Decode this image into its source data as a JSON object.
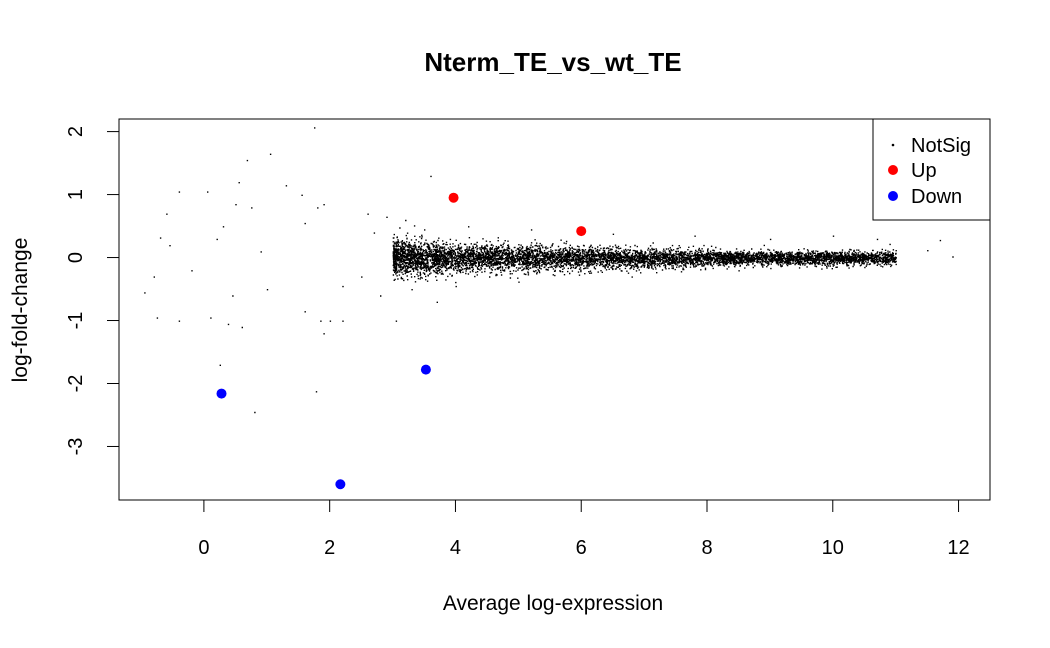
{
  "chart_data": {
    "type": "scatter",
    "title": "Nterm_TE_vs_wt_TE",
    "xlabel": "Average log-expression",
    "ylabel": "log-fold-change",
    "xlim": [
      -1.35,
      12.5
    ],
    "ylim": [
      -3.85,
      2.2
    ],
    "x_ticks": [
      0,
      2,
      4,
      6,
      8,
      10,
      12
    ],
    "y_ticks": [
      2,
      1,
      0,
      -1,
      -2,
      -3
    ],
    "grid": false,
    "legend": {
      "position": "top-right",
      "entries": [
        {
          "label": "NotSig",
          "color": "#000000",
          "marker": "dot"
        },
        {
          "label": "Up",
          "color": "#ff0000",
          "marker": "circle"
        },
        {
          "label": "Down",
          "color": "#0000ff",
          "marker": "circle"
        }
      ]
    },
    "series": [
      {
        "name": "Up",
        "color": "#ff0000",
        "points": [
          [
            3.97,
            0.95
          ],
          [
            6.0,
            0.42
          ]
        ]
      },
      {
        "name": "Down",
        "color": "#0000ff",
        "points": [
          [
            0.28,
            -2.16
          ],
          [
            2.17,
            -3.6
          ],
          [
            3.53,
            -1.78
          ]
        ]
      },
      {
        "name": "NotSig",
        "color": "#000000",
        "distribution_note": "dense cloud 3.0-11.0 near 0",
        "points": [
          [
            1.75,
            2.07
          ],
          [
            1.05,
            1.65
          ],
          [
            0.68,
            1.55
          ],
          [
            0.55,
            1.2
          ],
          [
            1.3,
            1.15
          ],
          [
            0.05,
            1.05
          ],
          [
            -0.4,
            1.05
          ],
          [
            3.6,
            1.3
          ],
          [
            1.55,
            1.0
          ],
          [
            1.9,
            0.85
          ],
          [
            -0.6,
            0.7
          ],
          [
            0.5,
            0.85
          ],
          [
            0.75,
            0.8
          ],
          [
            1.8,
            0.8
          ],
          [
            2.6,
            0.7
          ],
          [
            2.9,
            0.65
          ],
          [
            -0.7,
            0.32
          ],
          [
            -0.55,
            0.2
          ],
          [
            0.2,
            0.3
          ],
          [
            1.6,
            0.55
          ],
          [
            -0.95,
            -0.55
          ],
          [
            -0.8,
            -0.3
          ],
          [
            0.45,
            -0.6
          ],
          [
            1.0,
            -0.5
          ],
          [
            2.2,
            -0.45
          ],
          [
            2.8,
            -0.6
          ],
          [
            -0.75,
            -0.95
          ],
          [
            -0.4,
            -1.0
          ],
          [
            0.1,
            -0.95
          ],
          [
            0.38,
            -1.05
          ],
          [
            0.6,
            -1.1
          ],
          [
            1.6,
            -0.85
          ],
          [
            1.85,
            -1.0
          ],
          [
            2.0,
            -1.0
          ],
          [
            2.2,
            -1.0
          ],
          [
            3.05,
            -1.0
          ],
          [
            0.25,
            -1.7
          ],
          [
            1.78,
            -2.12
          ],
          [
            0.8,
            -2.45
          ],
          [
            1.9,
            -1.2
          ],
          [
            10.0,
            0.35
          ],
          [
            10.7,
            0.3
          ],
          [
            11.5,
            0.12
          ],
          [
            11.9,
            0.02
          ],
          [
            11.7,
            0.28
          ],
          [
            10.5,
            0.1
          ],
          [
            10.9,
            0.22
          ],
          [
            3.2,
            0.6
          ],
          [
            3.5,
            0.45
          ],
          [
            4.2,
            0.5
          ],
          [
            5.2,
            0.45
          ],
          [
            6.5,
            0.38
          ],
          [
            7.8,
            0.35
          ],
          [
            9.0,
            0.3
          ],
          [
            3.3,
            -0.5
          ],
          [
            4.0,
            -0.45
          ],
          [
            5.0,
            -0.38
          ],
          [
            6.8,
            -0.3
          ],
          [
            8.5,
            -0.2
          ],
          [
            3.7,
            -0.7
          ],
          [
            2.5,
            -0.3
          ],
          [
            2.7,
            0.4
          ],
          [
            0.9,
            0.1
          ],
          [
            -0.2,
            -0.2
          ],
          [
            0.3,
            0.5
          ]
        ]
      }
    ]
  }
}
